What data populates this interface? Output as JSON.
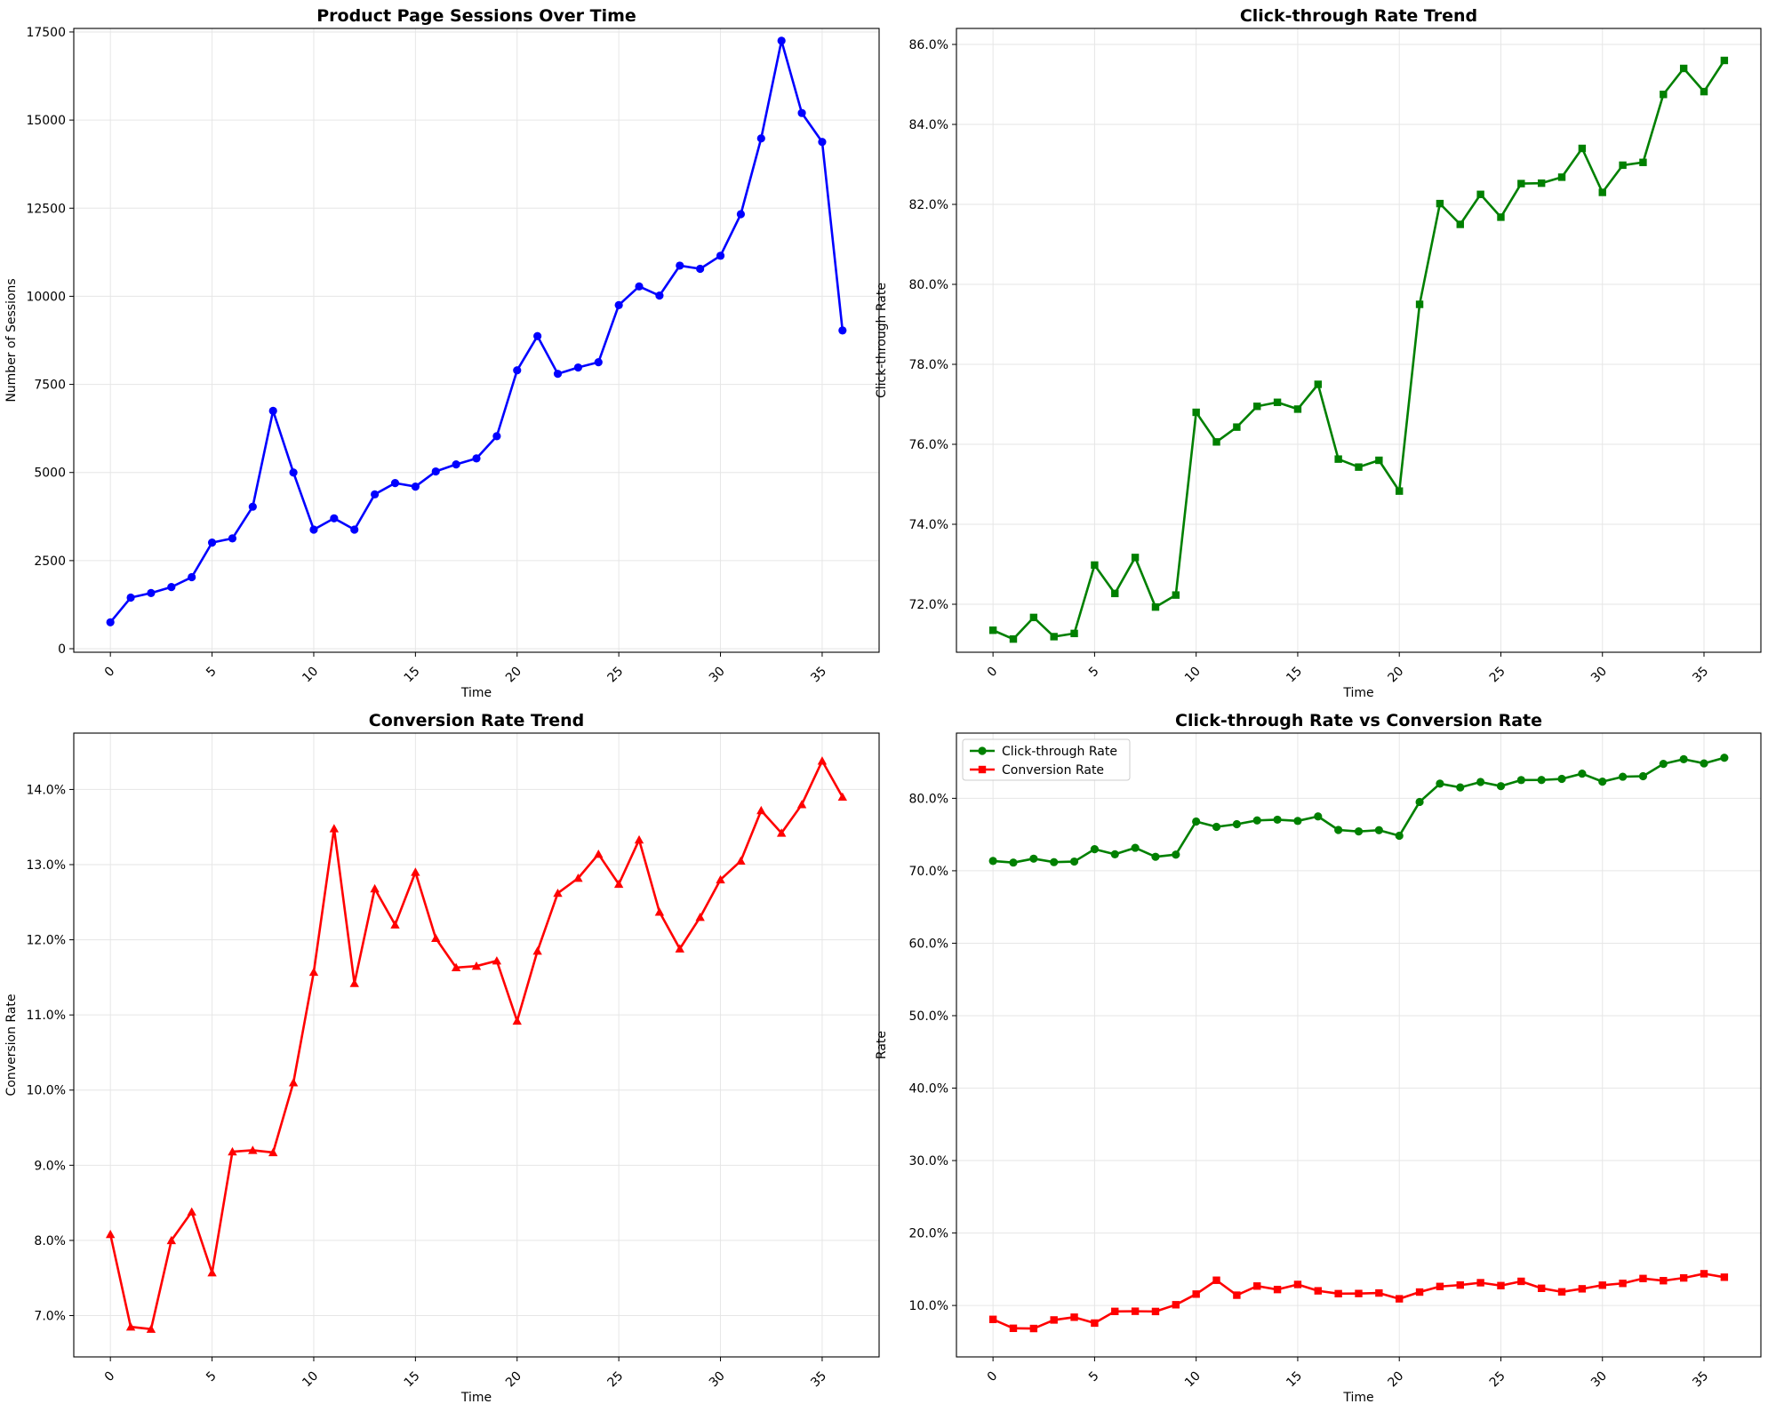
{
  "chart_data": [
    {
      "type": "line",
      "title": "Product Page Sessions Over Time",
      "xlabel": "Time",
      "ylabel": "Number of Sessions",
      "xlim": [
        -1.8,
        37.8
      ],
      "ylim": [
        -100,
        17600
      ],
      "xticks": [
        0,
        5,
        10,
        15,
        20,
        25,
        30,
        35
      ],
      "yticks": [
        0,
        2500,
        5000,
        7500,
        10000,
        12500,
        15000,
        17500
      ],
      "ytick_labels": [
        "0",
        "2500",
        "5000",
        "7500",
        "10000",
        "12500",
        "15000",
        "17500"
      ],
      "grid": true,
      "series": [
        {
          "color": "#0000ff",
          "marker": "circle",
          "values": [
            750,
            1450,
            1580,
            1750,
            2030,
            3010,
            3130,
            4030,
            6750,
            5000,
            3380,
            3700,
            3380,
            4380,
            4700,
            4600,
            5030,
            5230,
            5400,
            6030,
            7900,
            8870,
            7800,
            7980,
            8130,
            9750,
            10280,
            10020,
            10870,
            10780,
            11150,
            12330,
            14480,
            17250,
            15200,
            14380,
            9030
          ]
        }
      ]
    },
    {
      "type": "line",
      "title": "Click-through Rate Trend",
      "xlabel": "Time",
      "ylabel": "Click-through Rate",
      "xlim": [
        -1.8,
        37.8
      ],
      "ylim": [
        70.8,
        86.4
      ],
      "xticks": [
        0,
        5,
        10,
        15,
        20,
        25,
        30,
        35
      ],
      "yticks": [
        72,
        74,
        76,
        78,
        80,
        82,
        84,
        86
      ],
      "ytick_labels": [
        "72.0%",
        "74.0%",
        "76.0%",
        "78.0%",
        "80.0%",
        "82.0%",
        "84.0%",
        "86.0%"
      ],
      "grid": true,
      "series": [
        {
          "color": "#008000",
          "marker": "square",
          "values": [
            71.35,
            71.13,
            71.67,
            71.19,
            71.27,
            72.98,
            72.27,
            73.17,
            71.93,
            72.23,
            76.8,
            76.06,
            76.43,
            76.95,
            77.05,
            76.88,
            77.5,
            75.63,
            75.43,
            75.6,
            74.83,
            79.5,
            82.02,
            81.5,
            82.25,
            81.68,
            82.52,
            82.53,
            82.68,
            83.4,
            82.3,
            82.98,
            83.05,
            84.75,
            85.4,
            84.82,
            85.6
          ]
        }
      ]
    },
    {
      "type": "line",
      "title": "Conversion Rate Trend",
      "xlabel": "Time",
      "ylabel": "Conversion Rate",
      "xlim": [
        -1.8,
        37.8
      ],
      "ylim": [
        6.45,
        14.75
      ],
      "xticks": [
        0,
        5,
        10,
        15,
        20,
        25,
        30,
        35
      ],
      "yticks": [
        7,
        8,
        9,
        10,
        11,
        12,
        13,
        14
      ],
      "ytick_labels": [
        "7.0%",
        "8.0%",
        "9.0%",
        "10.0%",
        "11.0%",
        "12.0%",
        "13.0%",
        "14.0%"
      ],
      "grid": true,
      "series": [
        {
          "color": "#ff0000",
          "marker": "triangle",
          "values": [
            8.08,
            6.85,
            6.82,
            8.0,
            8.38,
            7.57,
            9.18,
            9.2,
            9.17,
            10.1,
            11.57,
            13.48,
            11.42,
            12.68,
            12.2,
            12.9,
            12.02,
            11.63,
            11.65,
            11.72,
            10.92,
            11.85,
            12.62,
            12.82,
            13.14,
            12.74,
            13.33,
            12.37,
            11.88,
            12.3,
            12.8,
            13.05,
            13.72,
            13.42,
            13.8,
            14.38,
            13.9
          ]
        }
      ]
    },
    {
      "type": "line",
      "title": "Click-through Rate vs Conversion Rate",
      "xlabel": "Time",
      "ylabel": "Rate",
      "xlim": [
        -1.8,
        37.8
      ],
      "ylim": [
        2.9,
        89.0
      ],
      "xticks": [
        0,
        5,
        10,
        15,
        20,
        25,
        30,
        35
      ],
      "yticks": [
        10,
        20,
        30,
        40,
        50,
        60,
        70,
        80
      ],
      "ytick_labels": [
        "10.0%",
        "20.0%",
        "30.0%",
        "40.0%",
        "50.0%",
        "60.0%",
        "70.0%",
        "80.0%"
      ],
      "grid": true,
      "legend": "top-left",
      "series": [
        {
          "name": "Click-through Rate",
          "color": "#008000",
          "marker": "circle",
          "values": [
            71.35,
            71.13,
            71.67,
            71.19,
            71.27,
            72.98,
            72.27,
            73.17,
            71.93,
            72.23,
            76.8,
            76.06,
            76.43,
            76.95,
            77.05,
            76.88,
            77.5,
            75.63,
            75.43,
            75.6,
            74.83,
            79.5,
            82.02,
            81.5,
            82.25,
            81.68,
            82.52,
            82.53,
            82.68,
            83.4,
            82.3,
            82.98,
            83.05,
            84.75,
            85.4,
            84.82,
            85.6
          ]
        },
        {
          "name": "Conversion Rate",
          "color": "#ff0000",
          "marker": "square",
          "values": [
            8.08,
            6.85,
            6.82,
            8.0,
            8.38,
            7.57,
            9.18,
            9.2,
            9.17,
            10.1,
            11.57,
            13.48,
            11.42,
            12.68,
            12.2,
            12.9,
            12.02,
            11.63,
            11.65,
            11.72,
            10.92,
            11.85,
            12.62,
            12.82,
            13.14,
            12.74,
            13.33,
            12.37,
            11.88,
            12.3,
            12.8,
            13.05,
            13.72,
            13.42,
            13.8,
            14.38,
            13.9
          ]
        }
      ]
    }
  ]
}
